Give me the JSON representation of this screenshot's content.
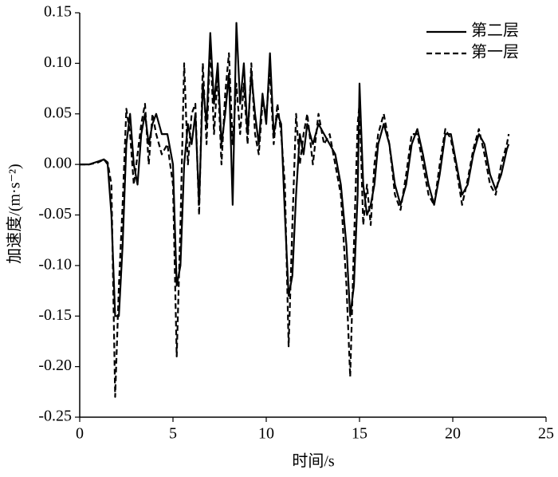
{
  "chart_data": {
    "type": "line",
    "xlabel": "时间/s",
    "ylabel": "加速度/(m·s⁻²)",
    "xlim": [
      0,
      25
    ],
    "xticks": [
      0,
      5,
      10,
      15,
      20,
      25
    ],
    "ylim": [
      -0.25,
      0.15
    ],
    "yticks": [
      {
        "value": -0.25,
        "label": "-0.25"
      },
      {
        "value": -0.2,
        "label": "-0.20"
      },
      {
        "value": -0.15,
        "label": "-0.15"
      },
      {
        "value": -0.1,
        "label": "-0.10"
      },
      {
        "value": -0.05,
        "label": "-0.05"
      },
      {
        "value": 0,
        "label": "0.00"
      },
      {
        "value": 0.05,
        "label": "0.05"
      },
      {
        "value": 0.1,
        "label": "0.10"
      },
      {
        "value": 0.15,
        "label": "0.15"
      }
    ],
    "legend": "upper right",
    "x": [
      0,
      0.5,
      1,
      1.3,
      1.5,
      1.7,
      1.9,
      2.1,
      2.3,
      2.5,
      2.7,
      2.9,
      3.1,
      3.3,
      3.5,
      3.7,
      3.9,
      4.1,
      4.4,
      4.7,
      5,
      5.2,
      5.4,
      5.6,
      5.8,
      6,
      6.2,
      6.4,
      6.6,
      6.8,
      7,
      7.2,
      7.4,
      7.6,
      7.8,
      8,
      8.2,
      8.4,
      8.6,
      8.8,
      9,
      9.2,
      9.4,
      9.6,
      9.8,
      10,
      10.2,
      10.4,
      10.6,
      10.8,
      11,
      11.2,
      11.4,
      11.6,
      11.8,
      12,
      12.2,
      12.5,
      12.8,
      13.1,
      13.4,
      13.7,
      14,
      14.3,
      14.5,
      14.7,
      14.9,
      15,
      15.2,
      15.4,
      15.6,
      15.8,
      16,
      16.3,
      16.6,
      16.9,
      17.2,
      17.5,
      17.8,
      18.1,
      18.4,
      18.7,
      19,
      19.3,
      19.6,
      19.9,
      20.2,
      20.5,
      20.8,
      21.1,
      21.4,
      21.7,
      22,
      22.3,
      22.6,
      22.9,
      23
    ],
    "series": [
      {
        "name": "第二层",
        "color": "#000000",
        "dash": false,
        "values": [
          0,
          0,
          0.003,
          0.005,
          0,
          -0.05,
          -0.15,
          -0.15,
          -0.08,
          0.02,
          0.05,
          0,
          -0.02,
          0.03,
          0.05,
          0.02,
          0.04,
          0.05,
          0.03,
          0.03,
          0,
          -0.12,
          -0.1,
          0,
          0.04,
          0.02,
          0.05,
          -0.04,
          0.08,
          0.04,
          0.13,
          0.06,
          0.1,
          0.02,
          0.05,
          0.09,
          -0.04,
          0.14,
          0.06,
          0.1,
          0.03,
          0.09,
          0.05,
          0.02,
          0.07,
          0.04,
          0.11,
          0.03,
          0.05,
          0.04,
          -0.05,
          -0.13,
          -0.11,
          -0.03,
          0.03,
          0.01,
          0.04,
          0.02,
          0.04,
          0.03,
          0.02,
          0.01,
          -0.02,
          -0.08,
          -0.15,
          -0.12,
          -0.03,
          0.08,
          -0.02,
          -0.05,
          -0.04,
          -0.02,
          0.02,
          0.04,
          0.02,
          -0.02,
          -0.04,
          -0.02,
          0.02,
          0.035,
          0.01,
          -0.02,
          -0.04,
          -0.01,
          0.03,
          0.03,
          0,
          -0.03,
          -0.02,
          0.01,
          0.03,
          0.02,
          -0.01,
          -0.025,
          -0.01,
          0.015,
          0.02
        ]
      },
      {
        "name": "第一层",
        "color": "#000000",
        "dash": true,
        "values": [
          0,
          0,
          0.002,
          0.005,
          0.002,
          -0.02,
          -0.23,
          -0.12,
          -0.04,
          0.055,
          0.03,
          -0.02,
          0.01,
          0.04,
          0.06,
          0,
          0.05,
          0.03,
          0.01,
          0.02,
          -0.02,
          -0.19,
          -0.06,
          0.1,
          0,
          0.05,
          0.06,
          -0.05,
          0.1,
          0.02,
          0.12,
          0.03,
          0.09,
          0,
          0.07,
          0.11,
          0.02,
          0.08,
          0.03,
          0.08,
          0.02,
          0.1,
          0.03,
          0.01,
          0.06,
          0.05,
          0.09,
          0.02,
          0.06,
          0.03,
          -0.02,
          -0.18,
          -0.06,
          0.05,
          0,
          0.03,
          0.05,
          0,
          0.05,
          0.02,
          0.03,
          0,
          -0.03,
          -0.12,
          -0.21,
          -0.08,
          0.04,
          0.06,
          -0.06,
          -0.02,
          -0.06,
          0,
          0.03,
          0.05,
          0.02,
          -0.03,
          -0.045,
          -0.01,
          0.03,
          0.03,
          0,
          -0.03,
          -0.04,
          0,
          0.035,
          0.025,
          -0.005,
          -0.04,
          -0.015,
          0.015,
          0.035,
          0.01,
          -0.02,
          -0.03,
          0,
          0.02,
          0.03
        ]
      }
    ]
  }
}
